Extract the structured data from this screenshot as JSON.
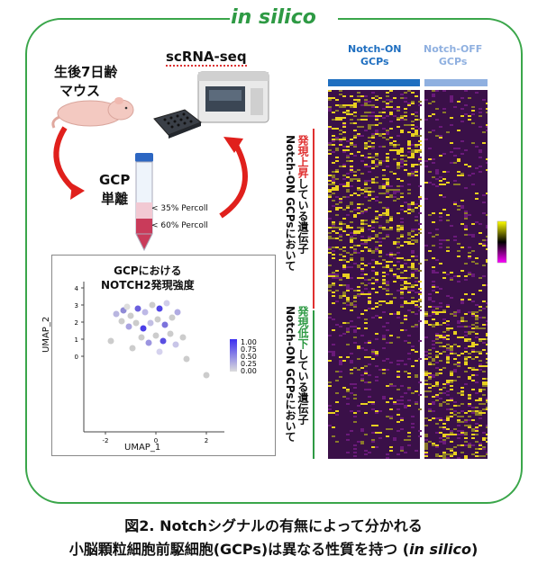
{
  "title": "in silico",
  "mouse_label_line1": "生後7日齢",
  "mouse_label_line2": "マウス",
  "scrnaseq_label": "scRNA-seq",
  "gcp_line1": "GCP",
  "gcp_line2": "単離",
  "percoll_35": "< 35% Percoll",
  "percoll_60": "< 60% Percoll",
  "umap": {
    "title_line1": "GCPにおける",
    "title_line2": "NOTCH2発現強度",
    "xlabel": "UMAP_1",
    "ylabel": "UMAP_2",
    "xticks": [
      "-2",
      "0",
      "2"
    ],
    "yticks": [
      "4",
      "3",
      "2",
      "1",
      "0"
    ],
    "legend_ticks": [
      "1.00",
      "0.75",
      "0.50",
      "0.25",
      "0.00"
    ]
  },
  "heatmap": {
    "col_on_line1": "Notch-ON",
    "col_on_line2": "GCPs",
    "col_off_line1": "Notch-OFF",
    "col_off_line2": "GCPs",
    "on_color": "#1f6fc0",
    "off_color": "#8fb0e0",
    "up_label_prefix": "Notch-ON GCPsにおいて",
    "up_label_emph": "発現上昇",
    "up_label_suffix": "している遺伝子",
    "down_label_prefix": "Notch-ON GCPsにおいて",
    "down_label_emph": "発現低下",
    "down_label_suffix": "している遺伝子",
    "up_color": "#e03030",
    "down_color": "#2e9a44"
  },
  "caption_line1": "図2. Notchシグナルの有無によって分かれる",
  "caption_line2_main": "小脳顆粒細胞前駆細胞(GCPs)は異なる性質を持つ (",
  "caption_line2_italic": "in silico",
  "caption_line2_end": ")"
}
